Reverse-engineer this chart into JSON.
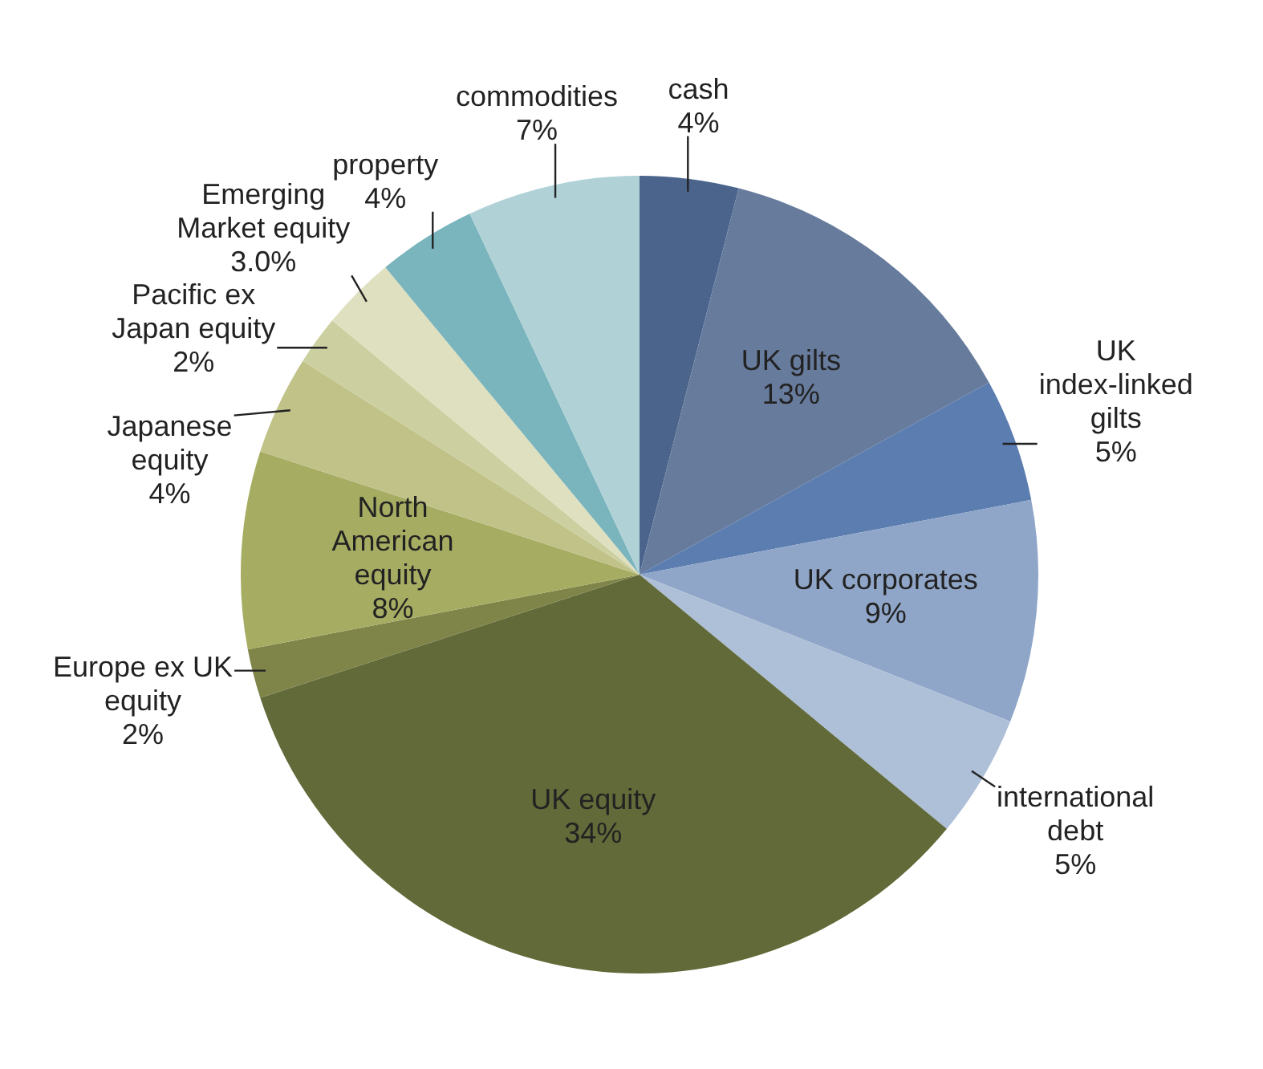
{
  "chart_data": {
    "type": "pie",
    "categories": [
      "cash",
      "UK gilts",
      "UK index-linked gilts",
      "UK corporates",
      "international debt",
      "UK equity",
      "Europe ex UK equity",
      "North American equity",
      "Japanese equity",
      "Pacific ex Japan equity",
      "Emerging Market equity",
      "property",
      "commodities"
    ],
    "values": [
      4,
      13,
      5,
      9,
      5,
      34,
      2,
      8,
      4,
      2,
      3.0,
      4,
      7
    ],
    "value_labels": [
      "4%",
      "13%",
      "5%",
      "9%",
      "5%",
      "34%",
      "2%",
      "8%",
      "4%",
      "2%",
      "3.0%",
      "4%",
      "7%"
    ],
    "colors": [
      "#4a648c",
      "#677b9c",
      "#5b7db0",
      "#8fa6c8",
      "#aebfd8",
      "#616a38",
      "#7f8449",
      "#a6ad62",
      "#c0c288",
      "#ccd0a0",
      "#dfe0bf",
      "#7ab4bd",
      "#b0d2d7"
    ],
    "legend": false
  }
}
